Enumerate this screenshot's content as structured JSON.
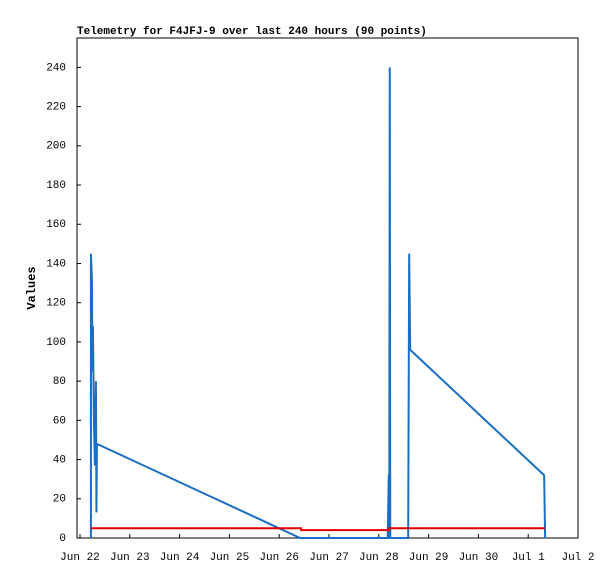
{
  "chart_data": {
    "type": "line",
    "title": "Telemetry for F4JFJ-9 over last 240 hours (90 points)",
    "y_label": "Values",
    "xlim": [
      -0.06,
      10
    ],
    "xticks": [
      {
        "value": 0,
        "label": "Jun 22"
      },
      {
        "value": 1,
        "label": "Jun 23"
      },
      {
        "value": 2,
        "label": "Jun 24"
      },
      {
        "value": 3,
        "label": "Jun 25"
      },
      {
        "value": 4,
        "label": "Jun 26"
      },
      {
        "value": 5,
        "label": "Jun 27"
      },
      {
        "value": 6,
        "label": "Jun 28"
      },
      {
        "value": 7,
        "label": "Jun 29"
      },
      {
        "value": 8,
        "label": "Jun 30"
      },
      {
        "value": 9,
        "label": "Jul 1"
      },
      {
        "value": 10,
        "label": "Jul 2"
      }
    ],
    "ylim": [
      0,
      255
    ],
    "yticks": [
      0,
      20,
      40,
      60,
      80,
      100,
      120,
      140,
      160,
      180,
      200,
      220,
      240
    ],
    "series": [
      {
        "color": "#1a6fc4",
        "x": [
          0.22,
          0.22,
          0.24,
          0.25,
          0.26,
          0.28,
          0.3,
          0.32,
          0.33,
          0.34,
          4.42,
          6.18,
          6.2,
          6.21,
          6.22,
          6.23,
          6.59,
          6.61,
          6.63,
          9.32,
          9.34
        ],
        "values": [
          0,
          145,
          132,
          85,
          108,
          60,
          37,
          80,
          13,
          48,
          0,
          0,
          32,
          0,
          240,
          0,
          0,
          145,
          96,
          32,
          0
        ]
      },
      {
        "color": "#e00000",
        "x": [
          0.22,
          4.44,
          4.44,
          6.2,
          6.2,
          9.34
        ],
        "values": [
          5,
          5,
          4,
          4,
          5,
          5
        ]
      }
    ]
  }
}
